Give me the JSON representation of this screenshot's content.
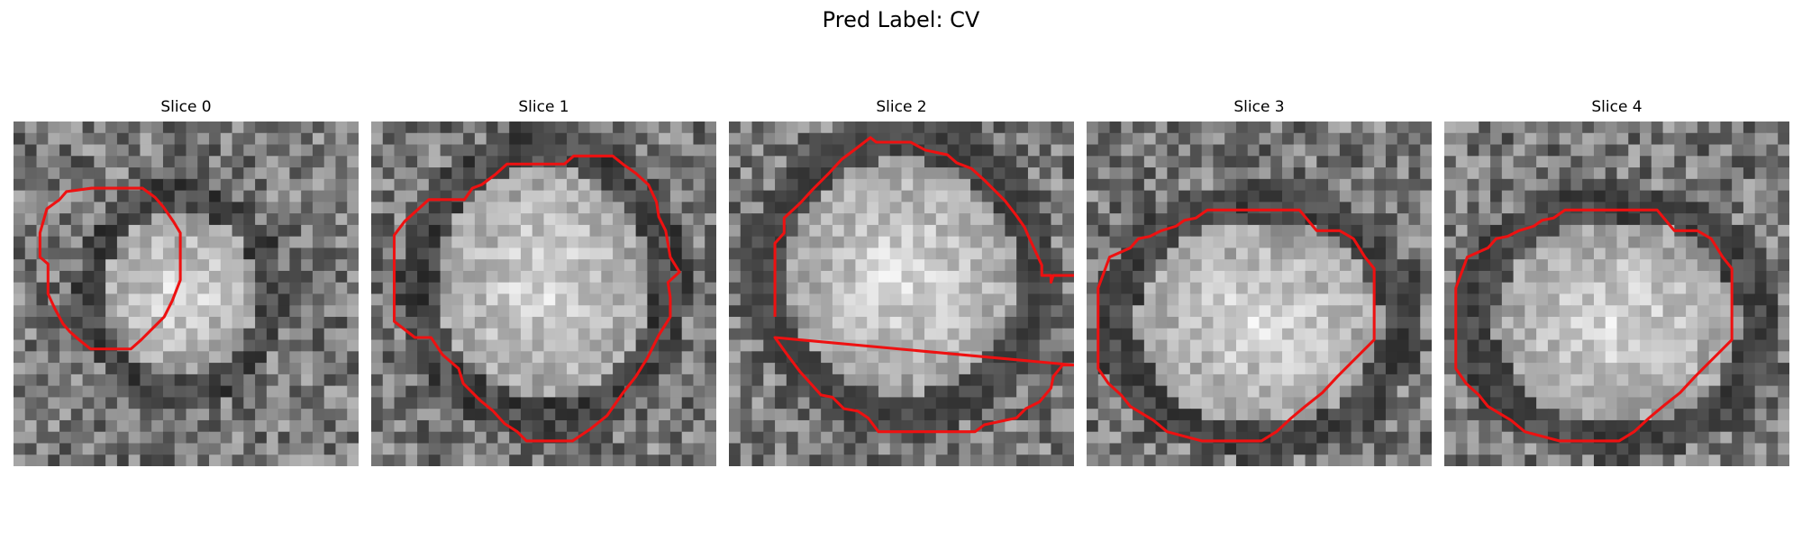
{
  "figure": {
    "title": "Pred Label: CV"
  },
  "slices": [
    {
      "title": "Slice 0",
      "image": "grayscale-mri-slice-with-red-contour"
    },
    {
      "title": "Slice 1",
      "image": "grayscale-mri-slice-with-red-contour"
    },
    {
      "title": "Slice 2",
      "image": "grayscale-mri-slice-with-red-contour"
    },
    {
      "title": "Slice 3",
      "image": "grayscale-mri-slice-with-red-contour"
    },
    {
      "title": "Slice 4",
      "image": "grayscale-mri-slice-with-red-contour"
    }
  ],
  "colors": {
    "contour": "#ee1111"
  }
}
